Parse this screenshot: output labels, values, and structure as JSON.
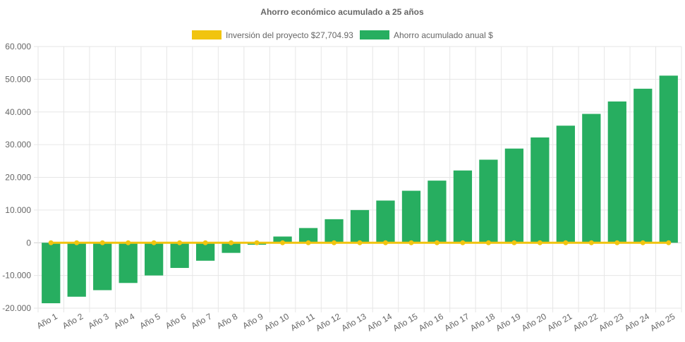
{
  "chart_data": {
    "type": "bar",
    "title": "Ahorro económico acumulado a 25 años",
    "categories": [
      "Año 1",
      "Año 2",
      "Año 3",
      "Año 4",
      "Año 5",
      "Año 6",
      "Año 7",
      "Año 8",
      "Año 9",
      "Año 10",
      "Año 11",
      "Año 12",
      "Año 13",
      "Año 14",
      "Año 15",
      "Año 16",
      "Año 17",
      "Año 18",
      "Año 19",
      "Año 20",
      "Año 21",
      "Año 22",
      "Año 23",
      "Año 24",
      "Año 25"
    ],
    "series": [
      {
        "name": "Inversión del proyecto $27,704.93",
        "type": "line",
        "color": "#f1c40f",
        "values": [
          0,
          0,
          0,
          0,
          0,
          0,
          0,
          0,
          0,
          0,
          0,
          0,
          0,
          0,
          0,
          0,
          0,
          0,
          0,
          0,
          0,
          0,
          0,
          0,
          0
        ]
      },
      {
        "name": "Ahorro acumulado anual $",
        "type": "bar",
        "color": "#27ae60",
        "values": [
          -18500,
          -16500,
          -14500,
          -12300,
          -10000,
          -7700,
          -5500,
          -3100,
          -600,
          1900,
          4500,
          7200,
          10000,
          12900,
          15900,
          19000,
          22100,
          25400,
          28800,
          32200,
          35800,
          39400,
          43200,
          47100,
          51100
        ]
      }
    ],
    "ylim": [
      -20000,
      60000
    ],
    "yticks": [
      "60.000",
      "50.000",
      "40.000",
      "30.000",
      "20.000",
      "10.000",
      "0",
      "-10.000",
      "-20.000"
    ],
    "ytick_values": [
      60000,
      50000,
      40000,
      30000,
      20000,
      10000,
      0,
      -10000,
      -20000
    ],
    "xlabel": "",
    "ylabel": "",
    "grid": true,
    "legend_position": "top"
  }
}
